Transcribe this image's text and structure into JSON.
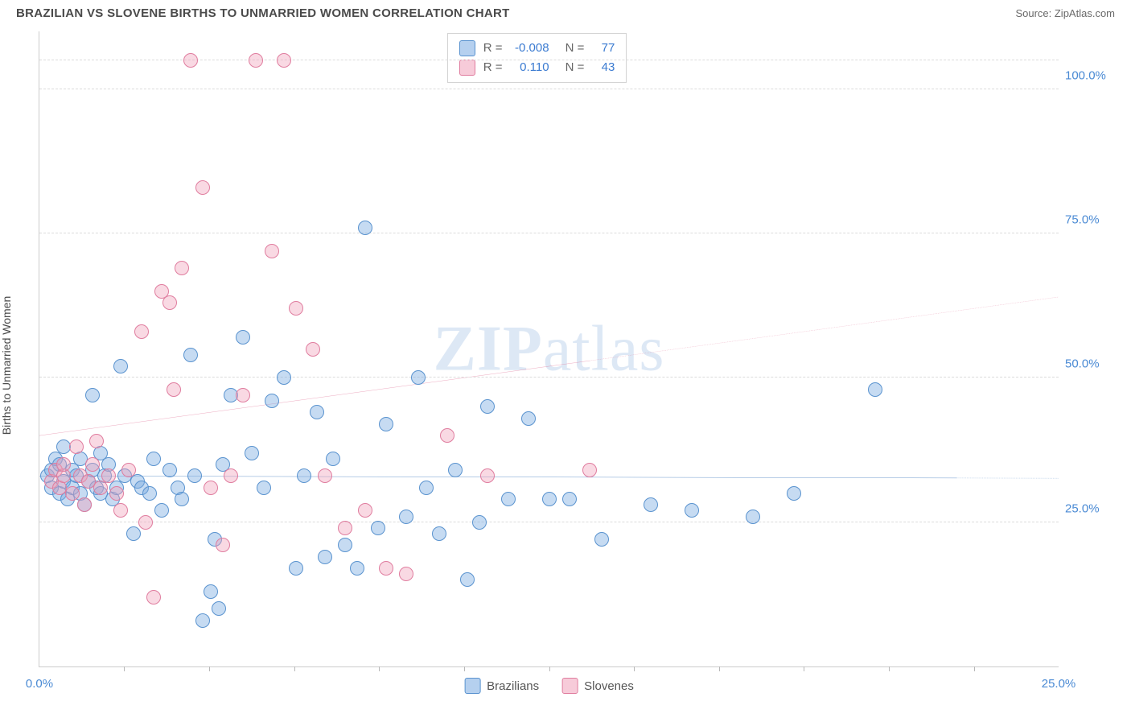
{
  "header": {
    "title": "BRAZILIAN VS SLOVENE BIRTHS TO UNMARRIED WOMEN CORRELATION CHART",
    "source": "Source: ZipAtlas.com"
  },
  "chart": {
    "type": "scatter",
    "yaxis_label": "Births to Unmarried Women",
    "watermark": "ZIPatlas",
    "background_color": "#ffffff",
    "grid_color": "#dcdcdc",
    "axis_color": "#cccccc",
    "xlim": [
      0,
      25
    ],
    "ylim": [
      0,
      110
    ],
    "yticks": [
      {
        "v": 25,
        "label": "25.0%"
      },
      {
        "v": 50,
        "label": "50.0%"
      },
      {
        "v": 75,
        "label": "75.0%"
      },
      {
        "v": 100,
        "label": "100.0%"
      }
    ],
    "ytick_plot_line": 105,
    "xticks_major": [
      0,
      25
    ],
    "xticks_minor": [
      2.08,
      4.17,
      6.25,
      8.33,
      10.42,
      12.5,
      14.58,
      16.67,
      18.75,
      20.83,
      22.92
    ],
    "xlabels": [
      {
        "v": 0,
        "label": "0.0%"
      },
      {
        "v": 25,
        "label": "25.0%"
      }
    ],
    "series": [
      {
        "name": "Brazilians",
        "key": "brazilians",
        "color_fill": "rgba(120,170,225,0.42)",
        "color_stroke": "#5a93cf",
        "trend_color": "#2f6fb8",
        "trend": {
          "y0": 33.0,
          "y1": 32.6,
          "solid_to_x": 22.5
        },
        "R": "-0.008",
        "N": "77",
        "points": [
          [
            0.2,
            33
          ],
          [
            0.3,
            34
          ],
          [
            0.3,
            31
          ],
          [
            0.4,
            36
          ],
          [
            0.5,
            30
          ],
          [
            0.5,
            35
          ],
          [
            0.6,
            32
          ],
          [
            0.6,
            38
          ],
          [
            0.7,
            29
          ],
          [
            0.8,
            34
          ],
          [
            0.8,
            31
          ],
          [
            0.9,
            33
          ],
          [
            1.0,
            30
          ],
          [
            1.0,
            36
          ],
          [
            1.1,
            28
          ],
          [
            1.2,
            32
          ],
          [
            1.3,
            34
          ],
          [
            1.3,
            47
          ],
          [
            1.4,
            31
          ],
          [
            1.5,
            37
          ],
          [
            1.5,
            30
          ],
          [
            1.6,
            33
          ],
          [
            1.7,
            35
          ],
          [
            1.8,
            29
          ],
          [
            1.9,
            31
          ],
          [
            2.0,
            52
          ],
          [
            2.1,
            33
          ],
          [
            2.3,
            23
          ],
          [
            2.4,
            32
          ],
          [
            2.5,
            31
          ],
          [
            2.7,
            30
          ],
          [
            2.8,
            36
          ],
          [
            3.0,
            27
          ],
          [
            3.2,
            34
          ],
          [
            3.4,
            31
          ],
          [
            3.5,
            29
          ],
          [
            3.7,
            54
          ],
          [
            3.8,
            33
          ],
          [
            4.0,
            8
          ],
          [
            4.2,
            13
          ],
          [
            4.3,
            22
          ],
          [
            4.4,
            10
          ],
          [
            4.5,
            35
          ],
          [
            4.7,
            47
          ],
          [
            5.0,
            57
          ],
          [
            5.2,
            37
          ],
          [
            5.5,
            31
          ],
          [
            5.7,
            46
          ],
          [
            6.0,
            50
          ],
          [
            6.3,
            17
          ],
          [
            6.5,
            33
          ],
          [
            6.8,
            44
          ],
          [
            7.0,
            19
          ],
          [
            7.2,
            36
          ],
          [
            7.5,
            21
          ],
          [
            7.8,
            17
          ],
          [
            8.0,
            76
          ],
          [
            8.3,
            24
          ],
          [
            8.5,
            42
          ],
          [
            9.0,
            26
          ],
          [
            9.3,
            50
          ],
          [
            9.8,
            23
          ],
          [
            10.2,
            34
          ],
          [
            10.5,
            15
          ],
          [
            10.8,
            25
          ],
          [
            11.0,
            45
          ],
          [
            11.5,
            29
          ],
          [
            12.0,
            43
          ],
          [
            12.5,
            29
          ],
          [
            13.0,
            29
          ],
          [
            13.8,
            22
          ],
          [
            15.0,
            28
          ],
          [
            16.0,
            27
          ],
          [
            17.5,
            26
          ],
          [
            18.5,
            30
          ],
          [
            20.5,
            48
          ],
          [
            9.5,
            31
          ]
        ]
      },
      {
        "name": "Slovenes",
        "key": "slovenes",
        "color_fill": "rgba(240,160,185,0.40)",
        "color_stroke": "#e07d9f",
        "trend_color": "#de6a8f",
        "trend": {
          "y0": 40.0,
          "y1": 64.0,
          "solid_to_x": 13.5
        },
        "R": "0.110",
        "N": "43",
        "points": [
          [
            0.3,
            32
          ],
          [
            0.4,
            34
          ],
          [
            0.5,
            31
          ],
          [
            0.6,
            33
          ],
          [
            0.6,
            35
          ],
          [
            0.8,
            30
          ],
          [
            0.9,
            38
          ],
          [
            1.0,
            33
          ],
          [
            1.1,
            28
          ],
          [
            1.2,
            32
          ],
          [
            1.3,
            35
          ],
          [
            1.4,
            39
          ],
          [
            1.5,
            31
          ],
          [
            1.7,
            33
          ],
          [
            1.9,
            30
          ],
          [
            2.0,
            27
          ],
          [
            2.2,
            34
          ],
          [
            2.5,
            58
          ],
          [
            2.6,
            25
          ],
          [
            2.8,
            12
          ],
          [
            3.0,
            65
          ],
          [
            3.2,
            63
          ],
          [
            3.3,
            48
          ],
          [
            3.5,
            69
          ],
          [
            3.7,
            105
          ],
          [
            4.0,
            83
          ],
          [
            4.2,
            31
          ],
          [
            4.5,
            21
          ],
          [
            4.7,
            33
          ],
          [
            5.0,
            47
          ],
          [
            5.3,
            105
          ],
          [
            5.7,
            72
          ],
          [
            6.0,
            105
          ],
          [
            6.3,
            62
          ],
          [
            6.7,
            55
          ],
          [
            7.0,
            33
          ],
          [
            7.5,
            24
          ],
          [
            8.0,
            27
          ],
          [
            8.5,
            17
          ],
          [
            9.0,
            16
          ],
          [
            10.0,
            40
          ],
          [
            11.0,
            33
          ],
          [
            13.5,
            34
          ]
        ]
      }
    ],
    "legend_stats": {
      "rows": [
        {
          "swatch": "b",
          "R_label": "R =",
          "R": "-0.008",
          "N_label": "N =",
          "N": "77"
        },
        {
          "swatch": "p",
          "R_label": "R =",
          "R": "0.110",
          "N_label": "N =",
          "N": "43"
        }
      ]
    },
    "bottom_legend": [
      {
        "swatch": "b",
        "label": "Brazilians"
      },
      {
        "swatch": "p",
        "label": "Slovenes"
      }
    ]
  }
}
